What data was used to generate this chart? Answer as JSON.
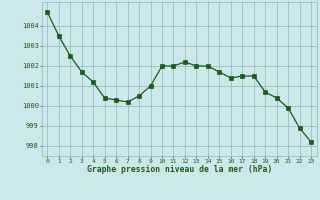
{
  "x": [
    0,
    1,
    2,
    3,
    4,
    5,
    6,
    7,
    8,
    9,
    10,
    11,
    12,
    13,
    14,
    15,
    16,
    17,
    18,
    19,
    20,
    21,
    22,
    23
  ],
  "y": [
    1004.7,
    1003.5,
    1002.5,
    1001.7,
    1001.2,
    1000.4,
    1000.3,
    1000.2,
    1000.5,
    1001.0,
    1002.0,
    1002.0,
    1002.2,
    1002.0,
    1002.0,
    1001.7,
    1001.4,
    1001.5,
    1001.5,
    1000.7,
    1000.4,
    999.9,
    998.9,
    998.2
  ],
  "line_color": "#1a5c1a",
  "marker_color": "#1a5c1a",
  "bg_color": "#cce8e8",
  "grid_color": "#88bbbb",
  "xlabel": "Graphe pression niveau de la mer (hPa)",
  "xlabel_color": "#1a5c1a",
  "tick_color": "#1a5c1a",
  "ylim": [
    997.5,
    1005.2
  ],
  "yticks": [
    998,
    999,
    1000,
    1001,
    1002,
    1003,
    1004
  ],
  "xticks": [
    0,
    1,
    2,
    3,
    4,
    5,
    6,
    7,
    8,
    9,
    10,
    11,
    12,
    13,
    14,
    15,
    16,
    17,
    18,
    19,
    20,
    21,
    22,
    23
  ]
}
